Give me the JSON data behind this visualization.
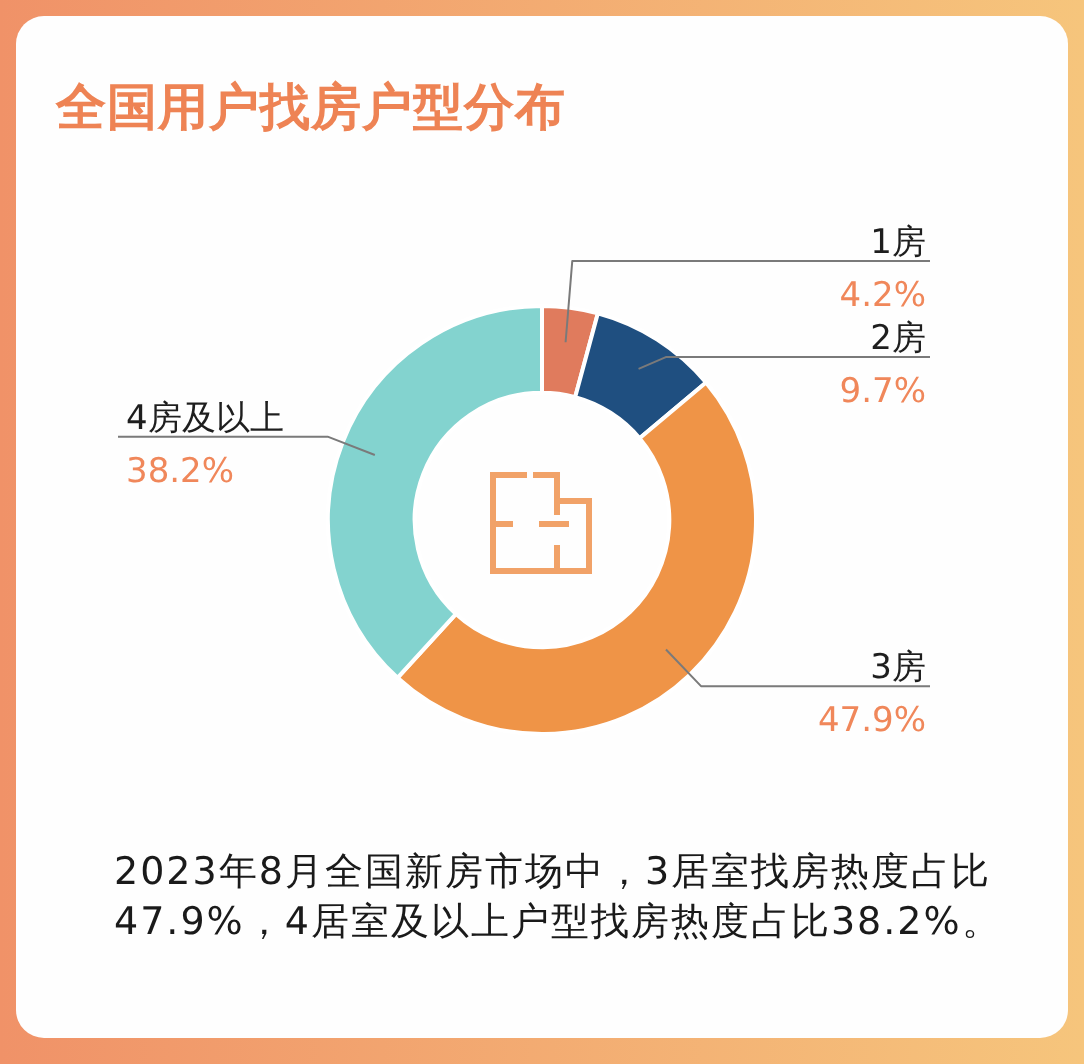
{
  "chart_data": {
    "type": "donut",
    "title": "全国用户找房户型分布",
    "categories": [
      "1房",
      "2房",
      "3房",
      "4房及以上"
    ],
    "values": [
      4.2,
      9.7,
      47.9,
      38.2
    ],
    "colors": [
      "#e07b5d",
      "#1f4f80",
      "#ef9447",
      "#83d3cf"
    ],
    "value_labels": [
      "4.2%",
      "9.7%",
      "47.9%",
      "38.2%"
    ],
    "annotations": [
      "2023年8月全国新房市场中，3居室找房热度占比47.9%，4居室及以上户型找房热度占比38.2%。"
    ]
  }
}
